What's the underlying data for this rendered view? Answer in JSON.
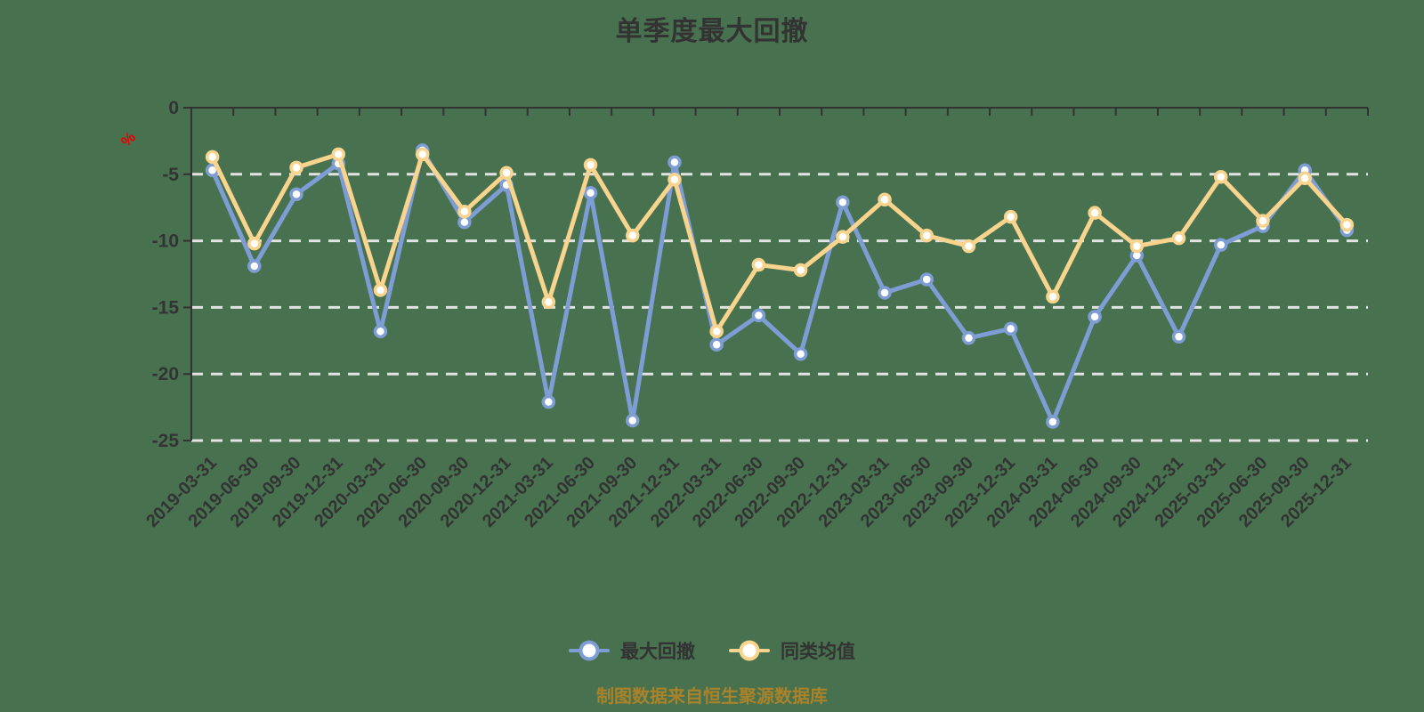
{
  "palette": {
    "background": "#48724F",
    "axis": "#333333",
    "grid": "#E3E3E3",
    "text": "#333333",
    "unit_label": "#E60000",
    "source_note": "#A9822A"
  },
  "chart_data": {
    "type": "line",
    "title": "单季度最大回撤",
    "y_unit": "%",
    "source_note": "制图数据来自恒生聚源数据库",
    "x": [
      "2019-03-31",
      "2019-06-30",
      "2019-09-30",
      "2019-12-31",
      "2020-03-31",
      "2020-06-30",
      "2020-09-30",
      "2020-12-31",
      "2021-03-31",
      "2021-06-30",
      "2021-09-30",
      "2021-12-31",
      "2022-03-31",
      "2022-06-30",
      "2022-09-30",
      "2022-12-31",
      "2023-03-31",
      "2023-06-30",
      "2023-09-30",
      "2023-12-31",
      "2024-03-31",
      "2024-06-30",
      "2024-09-30",
      "2024-12-31",
      "2025-03-31",
      "2025-06-30",
      "2025-09-30",
      "2025-12-31"
    ],
    "series": [
      {
        "name": "最大回撤",
        "color": "#7E9DD4",
        "values": [
          -4.7,
          -11.9,
          -6.5,
          -4.2,
          -16.8,
          -3.2,
          -8.6,
          -5.8,
          -22.1,
          -6.4,
          -23.5,
          -4.1,
          -17.8,
          -15.6,
          -18.5,
          -7.1,
          -13.9,
          -12.9,
          -17.3,
          -16.6,
          -23.6,
          -15.7,
          -11.1,
          -17.2,
          -10.3,
          -8.9,
          -4.7,
          -9.2
        ]
      },
      {
        "name": "同类均值",
        "color": "#F8D48E",
        "values": [
          -3.7,
          -10.2,
          -4.5,
          -3.5,
          -13.7,
          -3.5,
          -7.8,
          -4.9,
          -14.6,
          -4.3,
          -9.6,
          -5.4,
          -16.8,
          -11.8,
          -12.2,
          -9.7,
          -6.9,
          -9.6,
          -10.4,
          -8.2,
          -14.2,
          -7.9,
          -10.4,
          -9.8,
          -5.2,
          -8.5,
          -5.3,
          -8.8
        ]
      }
    ],
    "ylim": [
      -25,
      0
    ],
    "yticks": [
      0,
      -5,
      -10,
      -15,
      -20,
      -25
    ],
    "grid": "dashed-horizontal",
    "legend_position": "bottom",
    "marker": "circle-white-fill",
    "x_label_rotate": 45
  }
}
